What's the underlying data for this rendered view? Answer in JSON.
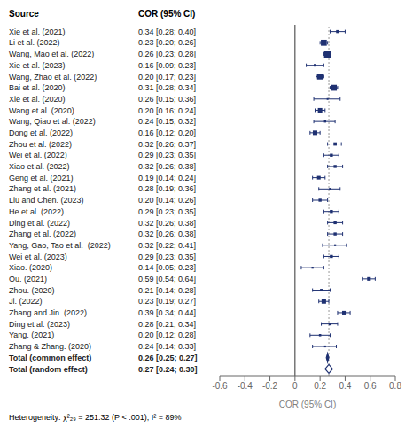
{
  "chart_data": {
    "type": "forest",
    "column_headers": [
      "Source",
      "COR (95% CI)"
    ],
    "xlabel": "COR (95% CI)",
    "annotation": "Heterogeneity: χ²₂₉ = 251.32 (P < .001), I² = 89%",
    "categories": [
      "Xie et al. (2021)",
      "Li et al. (2022)",
      "Wang, Mao et al. (2022)",
      "Xie et al. (2023)",
      "Wang, Zhao et al. (2022)",
      "Bai et al. (2020)",
      "Xie et al. (2020)",
      "Wang et al. (2020)",
      "Wang, Qiao et al. (2022)",
      "Dong et al. (2022)",
      "Zhou et al. (2022)",
      "Wei et al. (2022)",
      "Xiao et al. (2022)",
      "Geng et al. (2021)",
      "Zhang et al. (2021)",
      "Liu and Chen. (2023)",
      "He et al. (2022)",
      "Ding et al. (2022)",
      "Zhang et al. (2022)",
      "Yang, Gao, Tao et al.  (2022)",
      "Wei et al. (2023)",
      "Xiao. (2020)",
      "Ou. (2021)",
      "Zhou. (2020)",
      "Ji. (2022)",
      "Zhang and Jin. (2022)",
      "Ding et al. (2023)",
      "Yang. (2021)",
      "Zhang & Zhang. (2020)",
      "Total (common effect)",
      "Total (random effect)"
    ],
    "values": [
      0.34,
      0.23,
      0.26,
      0.16,
      0.2,
      0.31,
      0.26,
      0.2,
      0.24,
      0.16,
      0.32,
      0.29,
      0.32,
      0.19,
      0.28,
      0.2,
      0.29,
      0.32,
      0.32,
      0.32,
      0.29,
      0.14,
      0.59,
      0.21,
      0.23,
      0.39,
      0.28,
      0.2,
      0.24,
      0.26,
      0.27
    ],
    "lower": [
      0.28,
      0.2,
      0.23,
      0.09,
      0.17,
      0.28,
      0.15,
      0.16,
      0.15,
      0.12,
      0.26,
      0.23,
      0.26,
      0.14,
      0.19,
      0.14,
      0.23,
      0.26,
      0.26,
      0.22,
      0.23,
      0.05,
      0.54,
      0.14,
      0.19,
      0.34,
      0.21,
      0.12,
      0.14,
      0.25,
      0.24
    ],
    "upper": [
      0.4,
      0.26,
      0.28,
      0.23,
      0.23,
      0.34,
      0.36,
      0.24,
      0.32,
      0.2,
      0.37,
      0.35,
      0.38,
      0.24,
      0.36,
      0.26,
      0.35,
      0.38,
      0.38,
      0.41,
      0.35,
      0.23,
      0.64,
      0.28,
      0.27,
      0.44,
      0.34,
      0.28,
      0.33,
      0.27,
      0.3
    ],
    "value_labels": [
      "0.34 [0.28; 0.40]",
      "0.23 [0.20; 0.26]",
      "0.26 [0.23; 0.28]",
      "0.16 [0.09; 0.23]",
      "0.20 [0.17; 0.23]",
      "0.31 [0.28; 0.34]",
      "0.26 [0.15; 0.36]",
      "0.20 [0.16; 0.24]",
      "0.24 [0.15; 0.32]",
      "0.16 [0.12; 0.20]",
      "0.32 [0.26; 0.37]",
      "0.29 [0.23; 0.35]",
      "0.32 [0.26; 0.38]",
      "0.19 [0.14; 0.24]",
      "0.28 [0.19; 0.36]",
      "0.20 [0.14; 0.26]",
      "0.29 [0.23; 0.35]",
      "0.32 [0.26; 0.38]",
      "0.32 [0.26; 0.38]",
      "0.32 [0.22; 0.41]",
      "0.29 [0.23; 0.35]",
      "0.14 [0.05; 0.23]",
      "0.59 [0.54; 0.64]",
      "0.21 [0.14; 0.28]",
      "0.23 [0.19; 0.27]",
      "0.39 [0.34; 0.44]",
      "0.28 [0.21; 0.34]",
      "0.20 [0.12; 0.28]",
      "0.24 [0.14; 0.33]",
      "0.26 [0.25; 0.27]",
      "0.27 [0.24; 0.30]"
    ],
    "markers": [
      "square",
      "square",
      "square",
      "square",
      "square",
      "square",
      "square",
      "square",
      "square",
      "square",
      "square",
      "square",
      "square",
      "square",
      "square",
      "square",
      "square",
      "square",
      "square",
      "square",
      "square",
      "square",
      "square",
      "square",
      "square",
      "square",
      "square",
      "square",
      "square",
      "diamond",
      "open_diamond"
    ],
    "color": "#1f3172",
    "xlim": [
      -0.6,
      0.8
    ],
    "xticks": [
      -0.6,
      -0.4,
      -0.2,
      0,
      0.2,
      0.4,
      0.6,
      0.8
    ],
    "vlines": [
      {
        "value": 0,
        "line_style": "solid"
      },
      {
        "value": 0.27,
        "line_style": "dotted"
      }
    ],
    "grid": false
  }
}
